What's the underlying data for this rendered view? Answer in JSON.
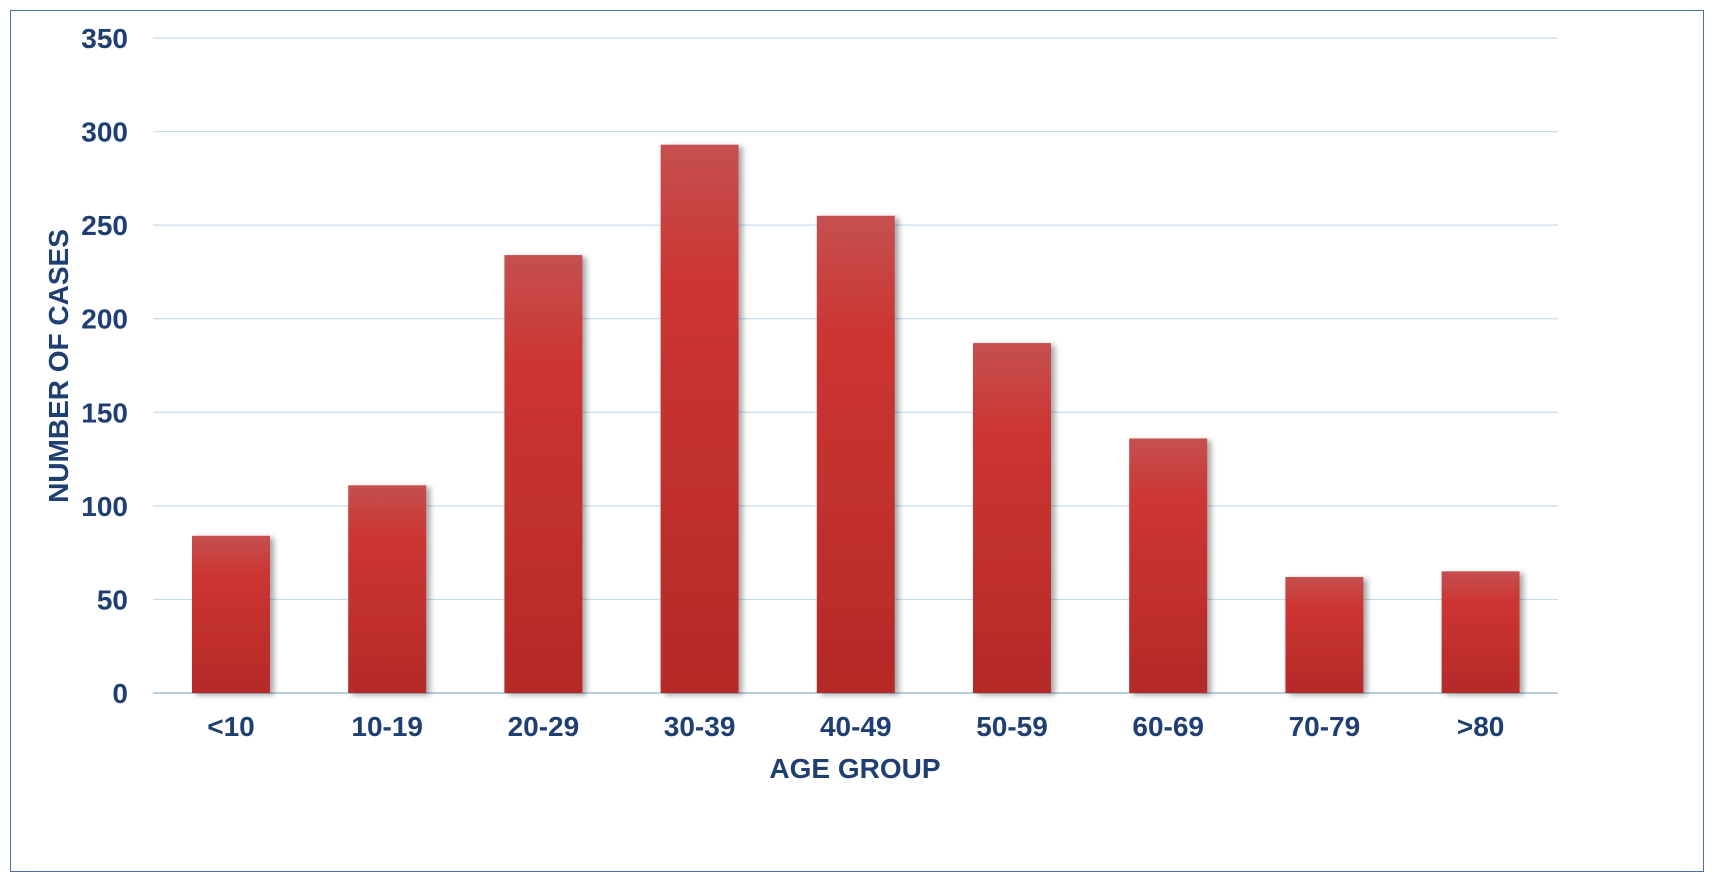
{
  "chart_data": {
    "type": "bar",
    "title": "",
    "xlabel": "AGE GROUP",
    "ylabel": "NUMBER OF CASES",
    "categories": [
      "<10",
      "10-19",
      "20-29",
      "30-39",
      "40-49",
      "50-59",
      "60-69",
      "70-79",
      ">80"
    ],
    "series": [
      {
        "values": [
          84,
          111,
          234,
          293,
          255,
          187,
          136,
          62,
          65
        ]
      }
    ],
    "ylim": [
      0,
      350
    ],
    "yticks": [
      0,
      50,
      100,
      150,
      200,
      250,
      300,
      350
    ],
    "grid": true,
    "legend": "none",
    "colors": {
      "bar": "#c9302c",
      "bar_light": "#c55050",
      "bar_dark": "#b52a28",
      "text": "#1f3f72",
      "grid": "#c8dcea",
      "border": "#4a6f9a"
    }
  }
}
